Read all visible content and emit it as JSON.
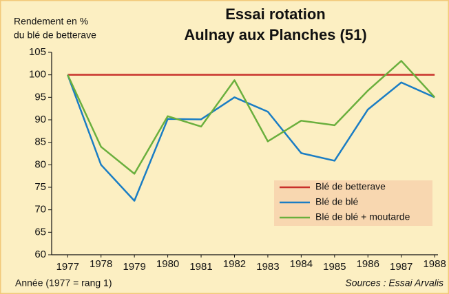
{
  "chart_data": {
    "type": "line",
    "title": [
      "Essai rotation",
      "Aulnay aux Planches (51)"
    ],
    "y_label": [
      "Rendement en %",
      "du blé de betterave"
    ],
    "x_label": "Année (1977 = rang 1)",
    "source": "Sources : Essai Arvalis",
    "x": [
      1977,
      1978,
      1979,
      1980,
      1981,
      1982,
      1983,
      1984,
      1985,
      1986,
      1987,
      1988
    ],
    "series": [
      {
        "name": "Blé de betterave",
        "color": "#c8312a",
        "values": [
          100,
          100,
          100,
          100,
          100,
          100,
          100,
          100,
          100,
          100,
          100,
          100
        ]
      },
      {
        "name": "Blé de blé",
        "color": "#1a7dc4",
        "values": [
          100,
          80,
          72,
          90.2,
          90.1,
          95,
          91.8,
          82.6,
          80.9,
          92.3,
          98.3,
          95
        ]
      },
      {
        "name": "Blé de blé + moutarde",
        "color": "#6aaf3d",
        "values": [
          100,
          84,
          78,
          90.8,
          88.5,
          98.8,
          85.2,
          89.8,
          88.8,
          96.5,
          103.1,
          95
        ]
      }
    ],
    "xlim": [
      1976.52,
      1988.1
    ],
    "xticks": [
      1977,
      1978,
      1979,
      1980,
      1981,
      1982,
      1983,
      1984,
      1985,
      1986,
      1987,
      1988
    ],
    "ylim": [
      60,
      105
    ],
    "yticks": [
      60,
      65,
      70,
      75,
      80,
      85,
      90,
      95,
      100,
      105
    ],
    "grid": false,
    "legend": "lower right"
  }
}
